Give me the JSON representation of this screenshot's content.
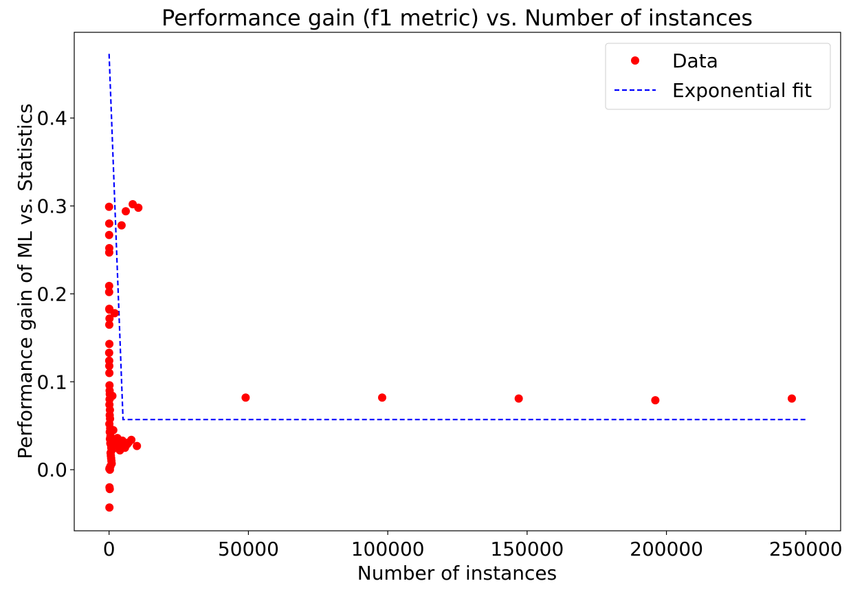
{
  "chart_data": {
    "type": "scatter",
    "title": "Performance gain (f1 metric) vs. Number of instances",
    "xlabel": "Number of instances",
    "ylabel": "Performance gain of ML vs. Statistics",
    "xlim": [
      -12500,
      262500
    ],
    "ylim": [
      -0.0695,
      0.4975
    ],
    "xticks": [
      0,
      50000,
      100000,
      150000,
      200000,
      250000
    ],
    "xtick_labels": [
      "0",
      "50000",
      "100000",
      "150000",
      "200000",
      "250000"
    ],
    "yticks": [
      0.0,
      0.1,
      0.2,
      0.3,
      0.4
    ],
    "ytick_labels": [
      "0.0",
      "0.1",
      "0.2",
      "0.3",
      "0.4"
    ],
    "grid": false,
    "legend": {
      "position": "upper right",
      "entries": [
        {
          "label": "Data",
          "marker": "circle",
          "color": "#ff0000"
        },
        {
          "label": "Exponential fit",
          "linestyle": "dashed",
          "color": "#0000ff"
        }
      ]
    },
    "series": [
      {
        "name": "Data",
        "kind": "scatter",
        "color": "#ff0000",
        "points": [
          [
            10,
            0.299
          ],
          [
            50,
            0.28
          ],
          [
            30,
            0.267
          ],
          [
            80,
            0.252
          ],
          [
            60,
            0.247
          ],
          [
            20,
            0.209
          ],
          [
            40,
            0.202
          ],
          [
            90,
            0.183
          ],
          [
            120,
            0.182
          ],
          [
            150,
            0.172
          ],
          [
            70,
            0.165
          ],
          [
            100,
            0.143
          ],
          [
            40,
            0.133
          ],
          [
            60,
            0.124
          ],
          [
            80,
            0.118
          ],
          [
            110,
            0.11
          ],
          [
            150,
            0.096
          ],
          [
            200,
            0.09
          ],
          [
            250,
            0.086
          ],
          [
            180,
            0.08
          ],
          [
            130,
            0.074
          ],
          [
            300,
            0.068
          ],
          [
            220,
            0.062
          ],
          [
            350,
            0.058
          ],
          [
            100,
            0.052
          ],
          [
            400,
            0.047
          ],
          [
            250,
            0.043
          ],
          [
            500,
            0.038
          ],
          [
            300,
            0.035
          ],
          [
            600,
            0.032
          ],
          [
            450,
            0.03
          ],
          [
            700,
            0.028
          ],
          [
            800,
            0.025
          ],
          [
            900,
            0.022
          ],
          [
            550,
            0.019
          ],
          [
            650,
            0.016
          ],
          [
            750,
            0.013
          ],
          [
            850,
            0.01
          ],
          [
            950,
            0.007
          ],
          [
            500,
            0.004
          ],
          [
            200,
            0.002
          ],
          [
            100,
            0.001
          ],
          [
            300,
            0.0
          ],
          [
            150,
            -0.02
          ],
          [
            250,
            -0.022
          ],
          [
            120,
            -0.043
          ],
          [
            1200,
            0.084
          ],
          [
            1500,
            0.045
          ],
          [
            1800,
            0.03
          ],
          [
            2000,
            0.178
          ],
          [
            2200,
            0.025
          ],
          [
            2500,
            0.032
          ],
          [
            2800,
            0.028
          ],
          [
            3000,
            0.036
          ],
          [
            3300,
            0.024
          ],
          [
            3600,
            0.031
          ],
          [
            3900,
            0.022
          ],
          [
            4200,
            0.028
          ],
          [
            4500,
            0.278
          ],
          [
            4800,
            0.033
          ],
          [
            5100,
            0.027
          ],
          [
            5400,
            0.03
          ],
          [
            5700,
            0.025
          ],
          [
            6000,
            0.294
          ],
          [
            6500,
            0.029
          ],
          [
            7000,
            0.031
          ],
          [
            8000,
            0.034
          ],
          [
            8500,
            0.302
          ],
          [
            10000,
            0.027
          ],
          [
            10500,
            0.298
          ],
          [
            49000,
            0.082
          ],
          [
            98000,
            0.082
          ],
          [
            147000,
            0.081
          ],
          [
            196000,
            0.079
          ],
          [
            245000,
            0.081
          ]
        ]
      },
      {
        "name": "Exponential fit",
        "kind": "line",
        "linestyle": "dashed",
        "color": "#0000ff",
        "x": [
          10,
          5000,
          250000
        ],
        "y": [
          0.473,
          0.057,
          0.057
        ]
      }
    ]
  }
}
